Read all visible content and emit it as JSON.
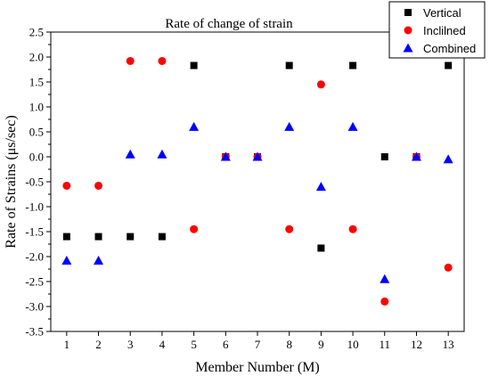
{
  "chart_data": {
    "type": "scatter",
    "title": "Rate of change of strain",
    "xlabel": "Member Number (M)",
    "ylabel": "Rate of Strains (μs/sec)",
    "xlim": [
      0.5,
      13.5
    ],
    "ylim": [
      -3.5,
      2.5
    ],
    "x_ticks": [
      1,
      2,
      3,
      4,
      5,
      6,
      7,
      8,
      9,
      10,
      11,
      12,
      13
    ],
    "x_tick_labels": [
      "1",
      "2",
      "3",
      "4",
      "5",
      "6",
      "7",
      "8",
      "9",
      "10",
      "11",
      "12",
      "13"
    ],
    "y_ticks": [
      2.5,
      2.0,
      1.5,
      1.0,
      0.5,
      0.0,
      -0.5,
      -1.0,
      -1.5,
      -2.0,
      -2.5,
      -3.0,
      -3.5
    ],
    "y_tick_labels": [
      "2.5",
      "2.0",
      "1.5",
      "1.0",
      "0.5",
      "0.0",
      "-0.5",
      "-1.0",
      "-1.5",
      "-2.0",
      "-2.5",
      "-3.0",
      "-3.5"
    ],
    "grid": false,
    "legend_position": "top-right",
    "x": [
      1,
      2,
      3,
      4,
      5,
      6,
      7,
      8,
      9,
      10,
      11,
      12,
      13
    ],
    "series": [
      {
        "name": "Vertical",
        "marker": "square",
        "color": "#000000",
        "values": [
          -1.6,
          -1.6,
          -1.6,
          -1.6,
          1.83,
          0.0,
          0.0,
          1.83,
          -1.83,
          1.83,
          0.0,
          0.0,
          1.83
        ]
      },
      {
        "name": "Inclilned",
        "marker": "circle",
        "color": "#ff0000",
        "values": [
          -0.58,
          -0.58,
          1.92,
          1.92,
          -1.45,
          0.0,
          0.0,
          -1.45,
          1.45,
          -1.45,
          -2.9,
          0.0,
          -2.22
        ]
      },
      {
        "name": "Combined",
        "marker": "triangle",
        "color": "#0000ff",
        "values": [
          -2.08,
          -2.08,
          0.05,
          0.05,
          0.6,
          0.0,
          0.0,
          0.6,
          -0.6,
          0.6,
          -2.45,
          0.0,
          -0.05
        ]
      }
    ]
  }
}
